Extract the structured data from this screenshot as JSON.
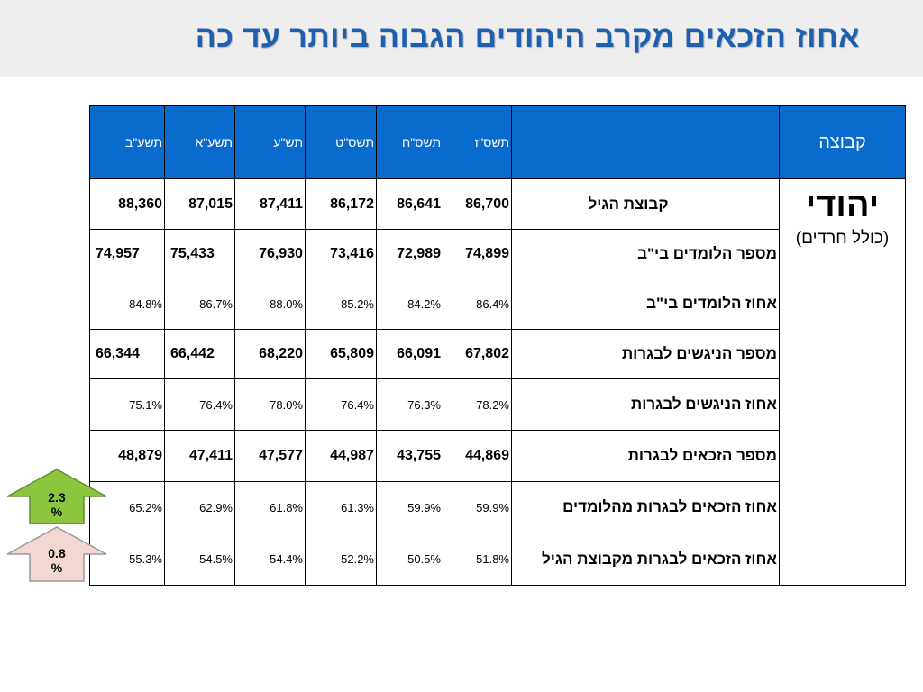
{
  "title": "אחוז הזכאים מקרב היהודים הגבוה ביותר עד כה",
  "table": {
    "group_header": "קבוצה",
    "years": [
      "תשס\"ז",
      "תשס\"ח",
      "תשס\"ט",
      "תש\"ע",
      "תשע\"א",
      "תשע\"ב"
    ],
    "group": {
      "name": "יהודי",
      "sub": "(כולל חרדים)"
    },
    "rows": [
      {
        "label": "קבוצת הגיל",
        "values": [
          "86,700",
          "86,641",
          "86,172",
          "87,411",
          "87,015",
          "88,360"
        ]
      },
      {
        "label": "מספר הלומדים בי\"ב",
        "values": [
          "74,899",
          "72,989",
          "73,416",
          "76,930",
          "75,433",
          "74,957"
        ]
      },
      {
        "label": "אחוז הלומדים בי\"ב",
        "values": [
          "86.4%",
          "84.2%",
          "85.2%",
          "88.0%",
          "86.7%",
          "84.8%"
        ]
      },
      {
        "label": "מספר הניגשים לבגרות",
        "values": [
          "67,802",
          "66,091",
          "65,809",
          "68,220",
          "66,442",
          "66,344"
        ]
      },
      {
        "label": "אחוז הניגשים לבגרות",
        "values": [
          "78.2%",
          "76.3%",
          "76.4%",
          "78.0%",
          "76.4%",
          "75.1%"
        ]
      },
      {
        "label": "מספר הזכאים לבגרות",
        "values": [
          "44,869",
          "43,755",
          "44,987",
          "47,577",
          "47,411",
          "48,879"
        ]
      },
      {
        "label": "אחוז הזכאים לבגרות מהלומדים",
        "values": [
          "59.9%",
          "59.9%",
          "61.3%",
          "61.8%",
          "62.9%",
          "65.2%"
        ]
      },
      {
        "label": "אחוז הזכאים לבגרות מקבוצת הגיל",
        "values": [
          "51.8%",
          "50.5%",
          "52.2%",
          "54.4%",
          "54.5%",
          "55.3%"
        ]
      }
    ]
  },
  "arrows": [
    {
      "line1": "2.3",
      "line2": "%",
      "color": "#8cc63f"
    },
    {
      "line1": "0.8",
      "line2": "%",
      "color": "#f2d7d2"
    }
  ]
}
